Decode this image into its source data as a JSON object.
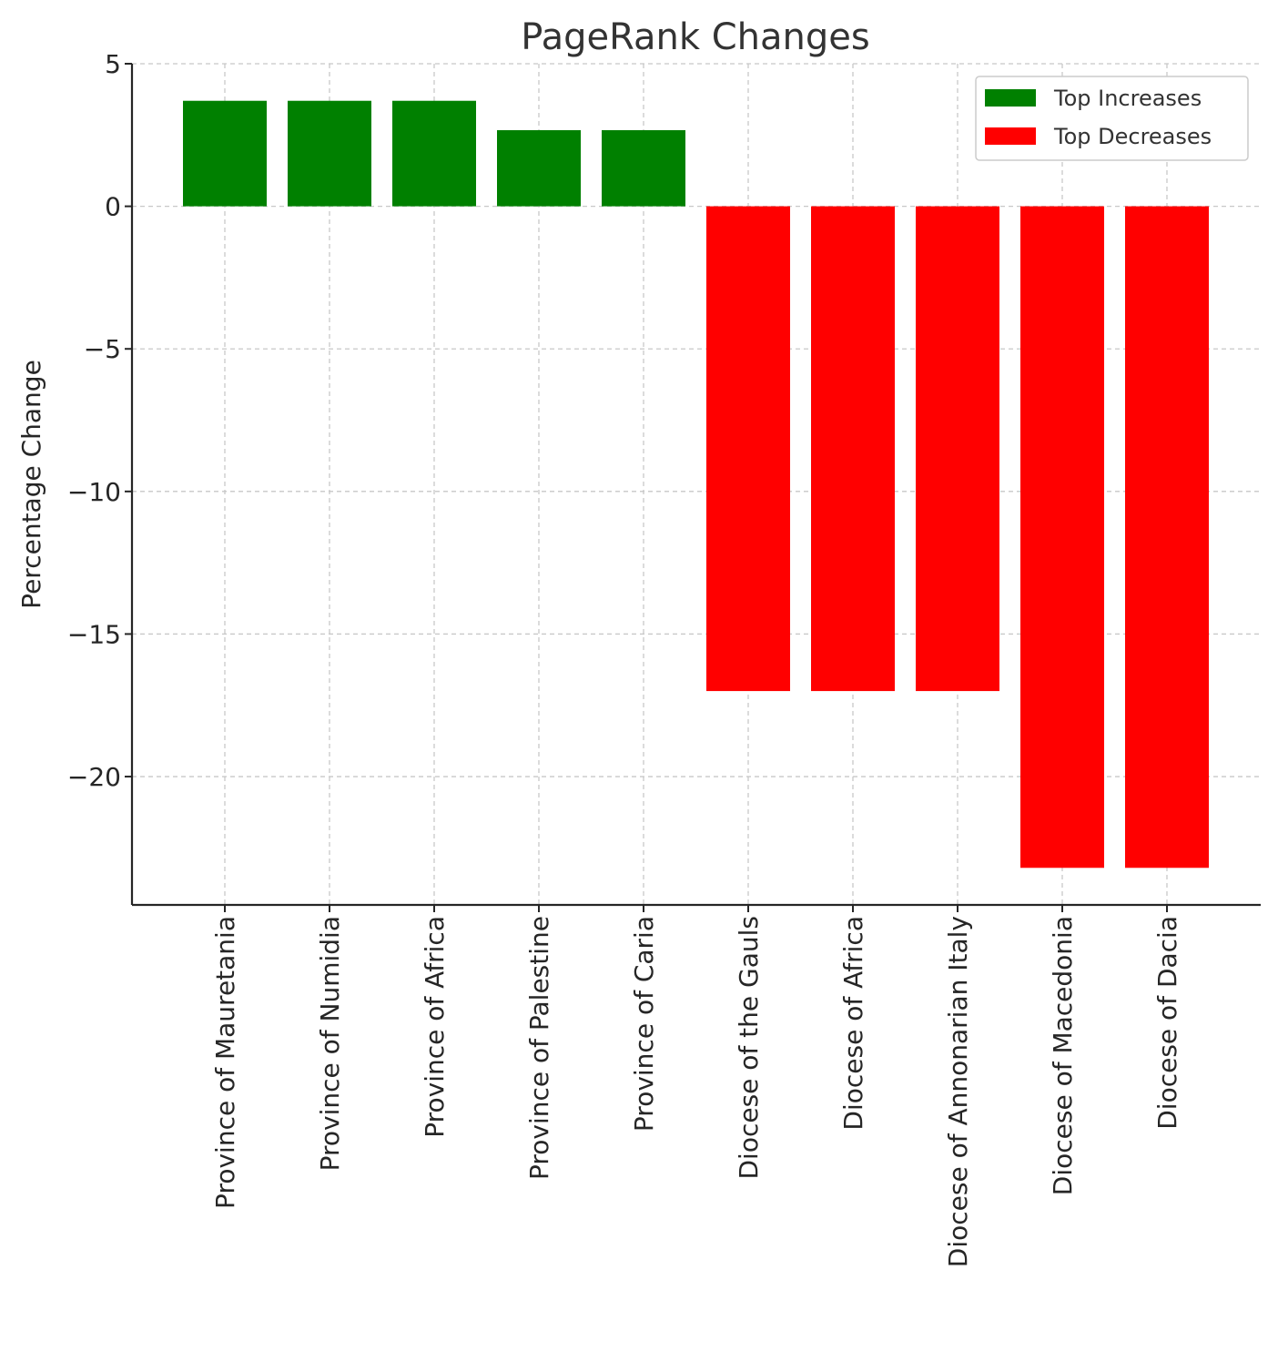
{
  "chart_data": {
    "type": "bar",
    "title": "PageRank Changes",
    "xlabel": "",
    "ylabel": "Percentage Change",
    "ylim": [
      -24.5,
      5
    ],
    "yticks": [
      5,
      0,
      -5,
      -10,
      -15,
      -20
    ],
    "grid": true,
    "legend_position": "top-right",
    "categories": [
      "Province of Mauretania",
      "Province of Numidia",
      "Province of Africa",
      "Province of Palestine",
      "Province of Caria",
      "Diocese of the Gauls",
      "Diocese of Africa",
      "Diocese of Annonarian Italy",
      "Diocese of Macedonia",
      "Diocese of Dacia"
    ],
    "series": [
      {
        "name": "Top Increases",
        "color": "#008000",
        "values": [
          3.7,
          3.7,
          3.7,
          2.67,
          2.67,
          null,
          null,
          null,
          null,
          null
        ]
      },
      {
        "name": "Top Decreases",
        "color": "#ff0000",
        "values": [
          null,
          null,
          null,
          null,
          null,
          -17.0,
          -17.0,
          -17.0,
          -23.2,
          -23.2
        ]
      }
    ]
  }
}
